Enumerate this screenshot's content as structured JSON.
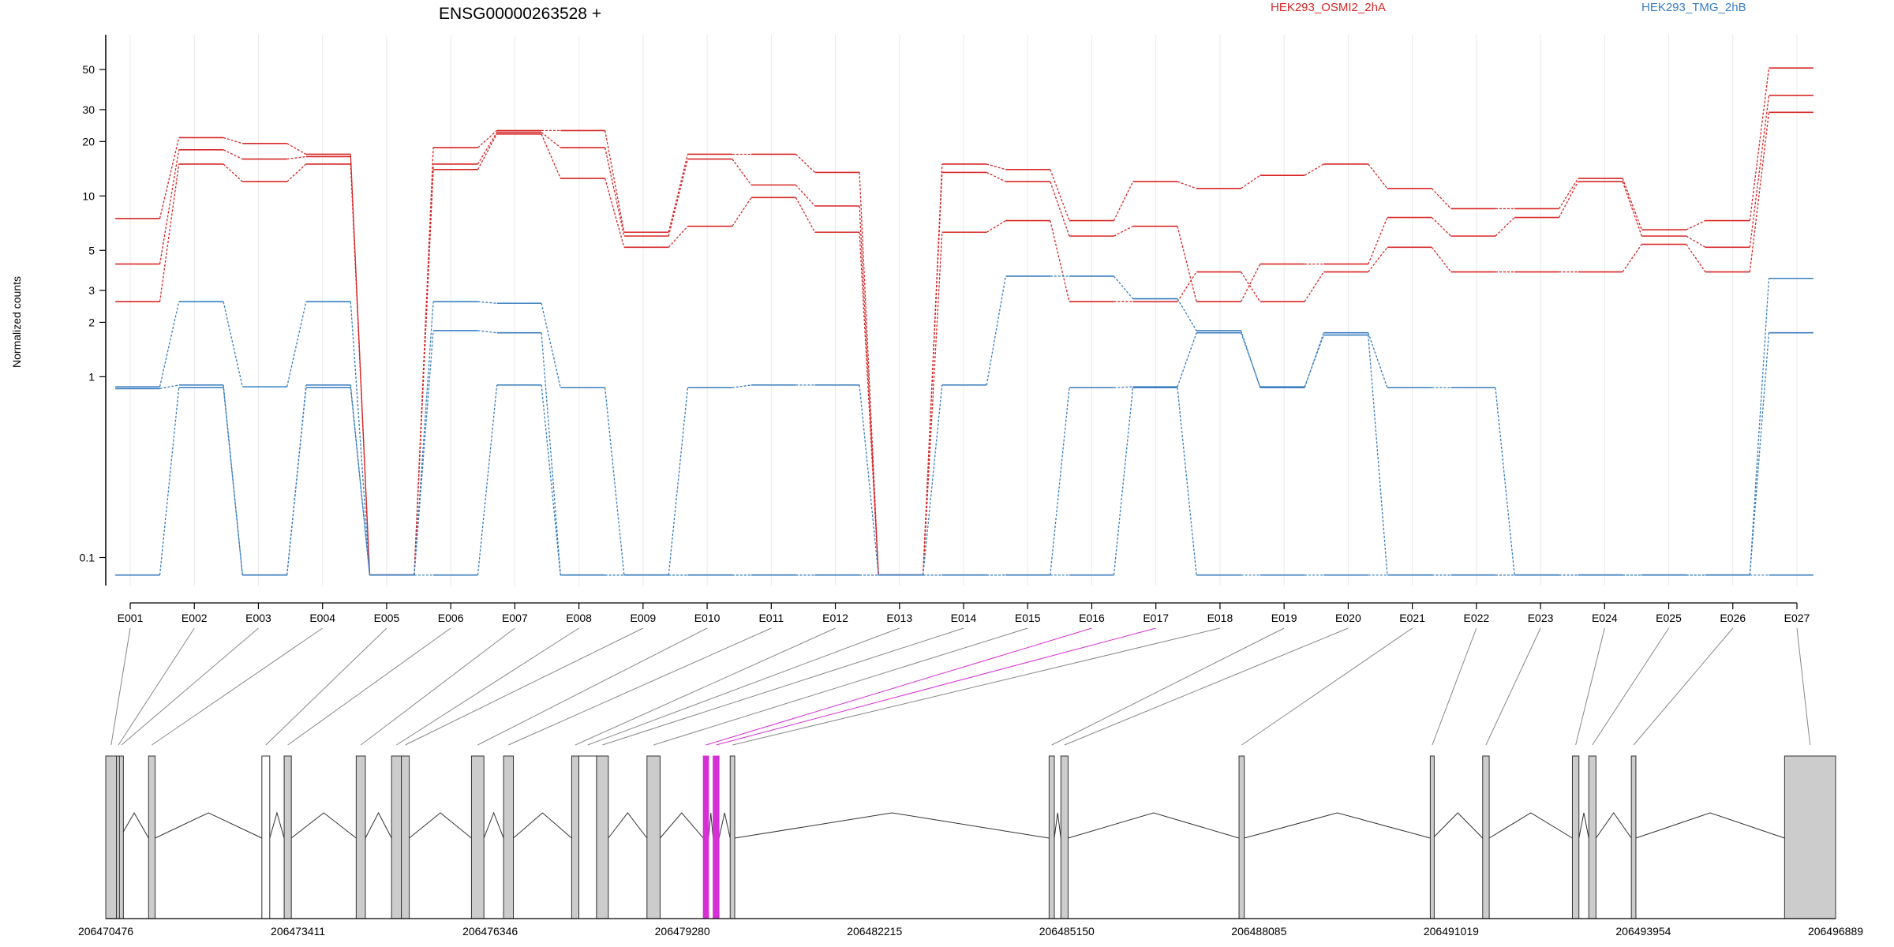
{
  "chart_data": {
    "type": "line",
    "title": "ENSG00000263528 +",
    "ylabel": "Normalized counts",
    "xlabel": "",
    "y_scale": "log",
    "y_ticks": [
      {
        "value": 0.1,
        "label": "0.1"
      },
      {
        "value": 1,
        "label": "1"
      },
      {
        "value": 2,
        "label": "2"
      },
      {
        "value": 3,
        "label": "3"
      },
      {
        "value": 5,
        "label": "5"
      },
      {
        "value": 10,
        "label": "10"
      },
      {
        "value": 20,
        "label": "20"
      },
      {
        "value": 30,
        "label": "30"
      },
      {
        "value": 50,
        "label": "50"
      }
    ],
    "ylim": [
      0.07,
      60
    ],
    "grid": "vertical",
    "legend_position": "top",
    "legend": [
      {
        "name": "HEK293_OSMI2_2hA",
        "color": "#d62728"
      },
      {
        "name": "HEK293_TMG_2hB",
        "color": "#3a7ebf"
      }
    ],
    "categories": [
      "E001",
      "E002",
      "E003",
      "E004",
      "E005",
      "E006",
      "E007",
      "E008",
      "E009",
      "E010",
      "E011",
      "E012",
      "E013",
      "E014",
      "E015",
      "E016",
      "E017",
      "E018",
      "E019",
      "E020",
      "E021",
      "E022",
      "E023",
      "E024",
      "E025",
      "E026",
      "E027"
    ],
    "series": [
      {
        "group": "HEK293_OSMI2_2hA",
        "color": "#d62728",
        "values": [
          7.5,
          21,
          19.5,
          17,
          0.08,
          18.5,
          23,
          23,
          6.3,
          17,
          17,
          13.5,
          0.08,
          15,
          14,
          7.3,
          12,
          11,
          13,
          15,
          11,
          8.5,
          8.5,
          12.5,
          6.5,
          7.3,
          51
        ]
      },
      {
        "group": "HEK293_OSMI2_2hA",
        "color": "#d62728",
        "values": [
          4.2,
          18,
          16,
          16.5,
          0.08,
          15,
          22.5,
          18.5,
          6,
          16,
          11.5,
          8.8,
          0.08,
          13.5,
          12,
          6,
          6.8,
          2.6,
          4.2,
          4.2,
          7.6,
          6,
          7.6,
          12,
          6,
          5.2,
          36
        ]
      },
      {
        "group": "HEK293_OSMI2_2hA",
        "color": "#d62728",
        "values": [
          2.6,
          15,
          12,
          15,
          0.08,
          14,
          22,
          12.5,
          5.2,
          6.8,
          9.8,
          6.3,
          0.08,
          6.3,
          7.3,
          2.6,
          2.6,
          3.8,
          2.6,
          3.8,
          5.2,
          3.8,
          3.8,
          3.8,
          5.4,
          3.8,
          29
        ]
      },
      {
        "group": "HEK293_TMG_2hB",
        "color": "#3a7ebf",
        "values": [
          0.88,
          2.6,
          0.88,
          2.6,
          0.08,
          2.6,
          2.55,
          0.87,
          0.08,
          0.87,
          0.9,
          0.9,
          0.08,
          0.9,
          3.6,
          3.6,
          2.7,
          1.8,
          0.87,
          1.75,
          0.87,
          0.87,
          0.08,
          0.08,
          0.08,
          0.08,
          3.5
        ]
      },
      {
        "group": "HEK293_TMG_2hB",
        "color": "#3a7ebf",
        "values": [
          0.86,
          0.9,
          0.08,
          0.9,
          0.08,
          1.8,
          1.75,
          0.08,
          0.08,
          0.08,
          0.08,
          0.08,
          0.08,
          0.08,
          0.08,
          0.87,
          0.88,
          1.75,
          0.88,
          1.7,
          0.08,
          0.08,
          0.08,
          0.08,
          0.08,
          0.08,
          1.75
        ]
      },
      {
        "group": "HEK293_TMG_2hB",
        "color": "#3a7ebf",
        "values": [
          0.08,
          0.87,
          0.08,
          0.87,
          0.08,
          0.08,
          0.9,
          0.08,
          0.08,
          0.08,
          0.08,
          0.08,
          0.08,
          0.08,
          0.08,
          0.08,
          0.87,
          0.08,
          0.08,
          0.08,
          0.08,
          0.08,
          0.08,
          0.08,
          0.08,
          0.08,
          0.08
        ]
      }
    ],
    "gene_model": {
      "coord_labels": [
        "206470476",
        "206473411",
        "206476346",
        "206479280",
        "206482215",
        "206485150",
        "206488085",
        "206491019",
        "206493954",
        "206496889"
      ],
      "start": 206470476,
      "end": 206496889,
      "highlight_color": "#d62fd6",
      "exons": [
        {
          "id": "E001",
          "start": 206470476,
          "end": 206470640,
          "fill": "#cccccc",
          "highlight": false
        },
        {
          "id": "E002",
          "start": 206470640,
          "end": 206470685,
          "fill": "#cccccc",
          "highlight": false
        },
        {
          "id": "E003",
          "start": 206470685,
          "end": 206470690,
          "fill": "#cccccc",
          "highlight": false
        },
        {
          "id": "E004",
          "start": 206471130,
          "end": 206471230,
          "fill": "#cccccc",
          "highlight": false
        },
        {
          "id": "E005",
          "start": 206472860,
          "end": 206472980,
          "fill": "#ffffff",
          "highlight": false
        },
        {
          "id": "E006",
          "start": 206473200,
          "end": 206473310,
          "fill": "#cccccc",
          "highlight": false
        },
        {
          "id": "E007",
          "start": 206474300,
          "end": 206474440,
          "fill": "#cccccc",
          "highlight": false
        },
        {
          "id": "E008",
          "start": 206474840,
          "end": 206474990,
          "fill": "#cccccc",
          "highlight": false
        },
        {
          "id": "E009",
          "start": 206474990,
          "end": 206475110,
          "fill": "#cccccc",
          "highlight": false
        },
        {
          "id": "E010",
          "start": 206476060,
          "end": 206476250,
          "fill": "#cccccc",
          "highlight": false
        },
        {
          "id": "E011",
          "start": 206476550,
          "end": 206476700,
          "fill": "#cccccc",
          "highlight": false
        },
        {
          "id": "E012",
          "start": 206477590,
          "end": 206477700,
          "fill": "#cccccc",
          "highlight": false
        },
        {
          "id": "E013",
          "start": 206477700,
          "end": 206477970,
          "fill": "#ffffff",
          "highlight": false
        },
        {
          "id": "E014",
          "start": 206477970,
          "end": 206478150,
          "fill": "#cccccc",
          "highlight": false
        },
        {
          "id": "E015",
          "start": 206478740,
          "end": 206478940,
          "fill": "#cccccc",
          "highlight": false
        },
        {
          "id": "E016",
          "start": 206479600,
          "end": 206479680,
          "fill": "#d62fd6",
          "highlight": true
        },
        {
          "id": "E017",
          "start": 206479750,
          "end": 206479840,
          "fill": "#d62fd6",
          "highlight": true
        },
        {
          "id": "E018",
          "start": 206480010,
          "end": 206480080,
          "fill": "#cccccc",
          "highlight": false
        },
        {
          "id": "E019",
          "start": 206484880,
          "end": 206484960,
          "fill": "#cccccc",
          "highlight": false
        },
        {
          "id": "E020",
          "start": 206485060,
          "end": 206485170,
          "fill": "#cccccc",
          "highlight": false
        },
        {
          "id": "E021",
          "start": 206487780,
          "end": 206487860,
          "fill": "#cccccc",
          "highlight": false
        },
        {
          "id": "E022",
          "start": 206490700,
          "end": 206490740,
          "fill": "#cccccc",
          "highlight": false
        },
        {
          "id": "E023",
          "start": 206491500,
          "end": 206491600,
          "fill": "#cccccc",
          "highlight": false
        },
        {
          "id": "E024",
          "start": 206492870,
          "end": 206492970,
          "fill": "#cccccc",
          "highlight": false
        },
        {
          "id": "E025",
          "start": 206493120,
          "end": 206493230,
          "fill": "#cccccc",
          "highlight": false
        },
        {
          "id": "E026",
          "start": 206493770,
          "end": 206493840,
          "fill": "#cccccc",
          "highlight": false
        },
        {
          "id": "E027",
          "start": 206496110,
          "end": 206496889,
          "fill": "#cccccc",
          "highlight": false
        }
      ]
    }
  }
}
